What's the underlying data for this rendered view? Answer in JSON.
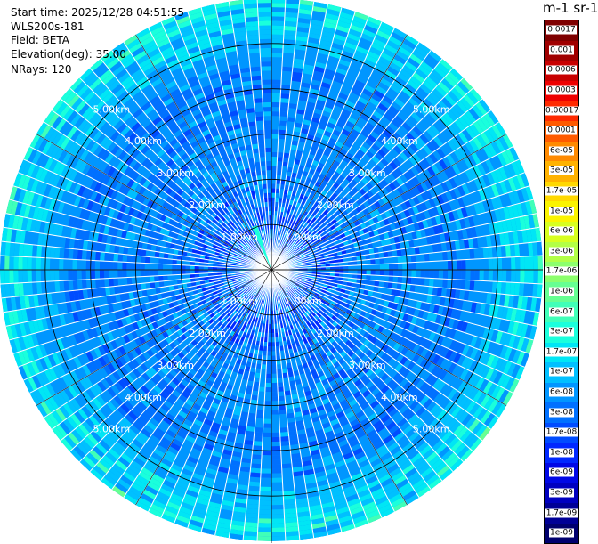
{
  "info": {
    "start_time": "Start time: 2025/12/28 04:51:55",
    "instrument": "WLS200s-181",
    "field": "Field: BETA",
    "elevation": "Elevation(deg): 35.00",
    "nrays": "NRays: 120"
  },
  "colorbar": {
    "title": "m-1 sr-1",
    "levels": [
      {
        "label": "0.0017",
        "color": "#7f0000"
      },
      {
        "label": "0.001",
        "color": "#a00000"
      },
      {
        "label": "0.0006",
        "color": "#c80000"
      },
      {
        "label": "0.0003",
        "color": "#ee0000"
      },
      {
        "label": "0.00017",
        "color": "#ff2a00"
      },
      {
        "label": "0.0001",
        "color": "#ff5a00"
      },
      {
        "label": "6e-05",
        "color": "#ff8a00"
      },
      {
        "label": "3e-05",
        "color": "#ffb200"
      },
      {
        "label": "1.7e-05",
        "color": "#ffd800"
      },
      {
        "label": "1e-05",
        "color": "#fbf400"
      },
      {
        "label": "6e-06",
        "color": "#d8ff1f"
      },
      {
        "label": "3e-06",
        "color": "#b2ff46"
      },
      {
        "label": "1.7e-06",
        "color": "#8cff6c"
      },
      {
        "label": "1e-06",
        "color": "#66ff92"
      },
      {
        "label": "6e-07",
        "color": "#40ffb8"
      },
      {
        "label": "3e-07",
        "color": "#1affdc"
      },
      {
        "label": "1.7e-07",
        "color": "#00e6f5"
      },
      {
        "label": "1e-07",
        "color": "#00c0ff"
      },
      {
        "label": "6e-08",
        "color": "#0096ff"
      },
      {
        "label": "3e-08",
        "color": "#0070ff"
      },
      {
        "label": "1.7e-08",
        "color": "#004cff"
      },
      {
        "label": "1e-08",
        "color": "#0028ff"
      },
      {
        "label": "6e-09",
        "color": "#0008e6"
      },
      {
        "label": "3e-09",
        "color": "#0000c0"
      },
      {
        "label": "1.7e-09",
        "color": "#000096"
      },
      {
        "label": "1e-09",
        "color": "#00006e"
      }
    ]
  },
  "chart_data": {
    "type": "heatmap",
    "projection": "polar PPI",
    "range_rings_km": [
      1,
      2,
      3,
      4,
      5
    ],
    "ring_labels": [
      "1.00km",
      "2.00km",
      "3.00km",
      "4.00km",
      "5.00km"
    ],
    "max_range_km": 6.0,
    "nrays": 120,
    "gates_per_ray": 60,
    "dominant_level": "6e-08",
    "notes": "Backscatter mostly 3e-08 to 1e-07 near centre, rising to 1.7e-07 to 1e-06 beyond ~5 km; strong thin feature toward NW at ~0.5 km."
  }
}
